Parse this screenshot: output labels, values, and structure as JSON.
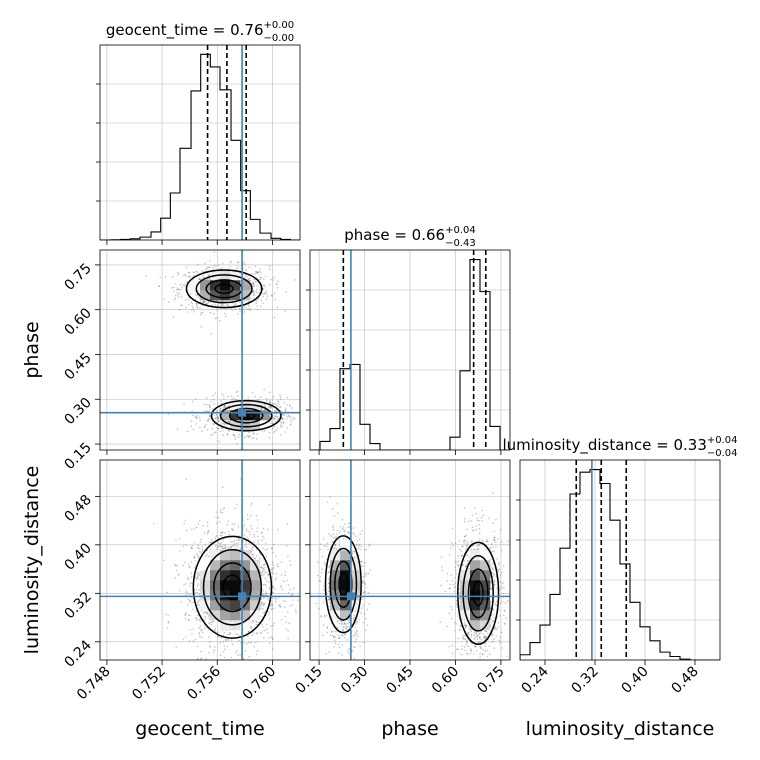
{
  "chart_data": {
    "type": "corner",
    "parameters": [
      "geocent_time",
      "phase",
      "luminosity_distance"
    ],
    "truth": {
      "geocent_time": 0.7578,
      "phase": 0.255,
      "luminosity_distance": 0.315
    },
    "colors": {
      "truth": "#4682b4",
      "hist": "#000000",
      "grid": "#bbbbbb",
      "scatter": "#555555"
    },
    "panels": {
      "hist_geocent_time": {
        "title_main": "geocent_time = 0.76",
        "title_sup": "+0.00",
        "title_sub": "−0.00",
        "xlim": [
          0.7475,
          0.762
        ],
        "quantiles": [
          0.7553,
          0.7567,
          0.7581
        ],
        "bins": [
          0.7475,
          0.7483,
          0.749,
          0.7497,
          0.7504,
          0.7512,
          0.7519,
          0.7526,
          0.7533,
          0.7541,
          0.7548,
          0.7555,
          0.7562,
          0.757,
          0.7577,
          0.7584,
          0.7591,
          0.7599,
          0.7606,
          0.7613,
          0.762
        ],
        "counts": [
          0,
          0.3,
          1,
          2,
          5,
          14,
          38,
          82,
          160,
          260,
          324,
          302,
          262,
          174,
          86,
          36,
          12,
          3,
          1,
          0
        ]
      },
      "hist_phase": {
        "title_main": "phase = 0.66",
        "title_sup": "+0.04",
        "title_sub": "−0.43",
        "xlim": [
          0.12,
          0.78
        ],
        "quantiles": [
          0.23,
          0.66,
          0.7
        ],
        "bins": [
          0.12,
          0.153,
          0.186,
          0.219,
          0.252,
          0.285,
          0.318,
          0.351,
          0.384,
          0.417,
          0.45,
          0.483,
          0.516,
          0.549,
          0.582,
          0.615,
          0.648,
          0.681,
          0.714,
          0.747,
          0.78
        ],
        "counts": [
          0,
          8,
          20,
          76,
          80,
          24,
          6,
          0,
          0,
          0,
          0,
          0,
          0,
          0,
          12,
          74,
          178,
          148,
          22,
          0
        ]
      },
      "hist_luminosity_distance": {
        "title_main": "luminosity_distance = 0.33",
        "title_sup": "+0.04",
        "title_sub": "−0.04",
        "xlim": [
          0.2,
          0.52
        ],
        "quantiles": [
          0.29,
          0.33,
          0.37
        ],
        "bins": [
          0.2,
          0.216,
          0.232,
          0.248,
          0.264,
          0.28,
          0.296,
          0.312,
          0.328,
          0.344,
          0.36,
          0.376,
          0.392,
          0.408,
          0.424,
          0.44,
          0.456,
          0.472,
          0.488,
          0.504,
          0.52
        ],
        "counts": [
          6,
          20,
          40,
          75,
          128,
          190,
          215,
          218,
          202,
          160,
          110,
          66,
          38,
          22,
          9,
          4,
          1,
          0,
          0,
          0
        ]
      },
      "phase_vs_geocent_time": {
        "xlim": [
          0.7475,
          0.762
        ],
        "ylim": [
          0.13,
          0.8
        ],
        "modes": [
          {
            "cx": 0.7565,
            "cy": 0.67,
            "sx": 0.0013,
            "sy": 0.03,
            "n": 900
          },
          {
            "cx": 0.7581,
            "cy": 0.245,
            "sx": 0.0012,
            "sy": 0.024,
            "n": 900
          }
        ]
      },
      "luminosity_distance_vs_geocent_time": {
        "xlim": [
          0.7475,
          0.762
        ],
        "ylim": [
          0.21,
          0.54
        ],
        "modes": [
          {
            "cx": 0.7571,
            "cy": 0.33,
            "sx": 0.00135,
            "sy": 0.04,
            "n": 1700
          }
        ]
      },
      "luminosity_distance_vs_phase": {
        "xlim": [
          0.12,
          0.78
        ],
        "ylim": [
          0.21,
          0.54
        ],
        "modes": [
          {
            "cx": 0.23,
            "cy": 0.335,
            "sx": 0.028,
            "sy": 0.038,
            "n": 800
          },
          {
            "cx": 0.675,
            "cy": 0.32,
            "sx": 0.032,
            "sy": 0.04,
            "n": 1100
          }
        ]
      }
    },
    "axes": {
      "geocent_time": {
        "label": "geocent_time",
        "ticks": [
          "0.748",
          "0.752",
          "0.756",
          "0.760"
        ]
      },
      "phase_x": {
        "label": "phase",
        "ticks": [
          "0.15",
          "0.30",
          "0.45",
          "0.60",
          "0.75"
        ]
      },
      "luminosity_distance_x": {
        "label": "luminosity_distance",
        "ticks": [
          "0.24",
          "0.32",
          "0.40",
          "0.48"
        ]
      },
      "phase_y": {
        "label": "phase",
        "ticks": [
          "0.15",
          "0.30",
          "0.45",
          "0.60",
          "0.75"
        ]
      },
      "luminosity_distance_y": {
        "label": "luminosity_distance",
        "ticks": [
          "0.24",
          "0.32",
          "0.40",
          "0.48"
        ]
      }
    }
  }
}
